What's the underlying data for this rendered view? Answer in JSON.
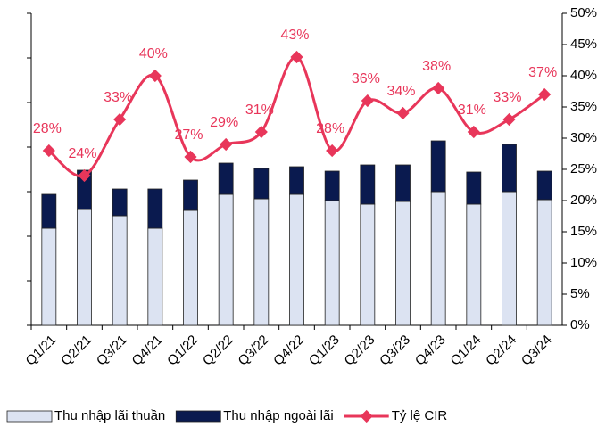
{
  "chart_data": {
    "type": "bar",
    "categories": [
      "Q1/21",
      "Q2/21",
      "Q3/21",
      "Q4/21",
      "Q1/22",
      "Q2/22",
      "Q3/22",
      "Q4/22",
      "Q1/23",
      "Q2/23",
      "Q3/23",
      "Q4/23",
      "Q1/24",
      "Q2/24",
      "Q3/24"
    ],
    "series": [
      {
        "name": "Thu nhập lãi thuần",
        "color": "#dce3f2",
        "type": "bar",
        "values": [
          10.9,
          13.0,
          12.3,
          10.9,
          12.9,
          14.7,
          14.2,
          14.7,
          14.0,
          13.6,
          13.9,
          15.0,
          13.6,
          15.0,
          14.1
        ]
      },
      {
        "name": "Thu nhập ngoài lãi",
        "color": "#0a1a4f",
        "type": "bar",
        "values": [
          3.8,
          4.4,
          3.0,
          4.4,
          3.4,
          3.5,
          3.4,
          3.1,
          3.3,
          4.4,
          4.1,
          5.7,
          3.6,
          5.3,
          3.2
        ]
      },
      {
        "name": "Tỷ lệ CIR",
        "color": "#e8365a",
        "type": "line",
        "axis": "y2",
        "values": [
          28,
          24,
          33,
          40,
          27,
          29,
          31,
          43,
          28,
          36,
          34,
          38,
          31,
          33,
          37
        ],
        "value_labels": [
          "28%",
          "24%",
          "33%",
          "40%",
          "27%",
          "29%",
          "31%",
          "43%",
          "28%",
          "36%",
          "34%",
          "38%",
          "31%",
          "33%",
          "37%"
        ]
      }
    ],
    "ylim": [
      0,
      35
    ],
    "yticks": [
      0,
      5,
      10,
      15,
      20,
      25,
      30,
      35
    ],
    "y2lim": [
      0,
      50
    ],
    "y2ticks": [
      {
        "value": 0,
        "label": "0%"
      },
      {
        "value": 5,
        "label": "5%"
      },
      {
        "value": 10,
        "label": "10%"
      },
      {
        "value": 15,
        "label": "15%"
      },
      {
        "value": 20,
        "label": "20%"
      },
      {
        "value": 25,
        "label": "25%"
      },
      {
        "value": 30,
        "label": "30%"
      },
      {
        "value": 35,
        "label": "35%"
      },
      {
        "value": 40,
        "label": "40%"
      },
      {
        "value": 45,
        "label": "45%"
      },
      {
        "value": 50,
        "label": "50%"
      }
    ],
    "legend": "bottom"
  }
}
